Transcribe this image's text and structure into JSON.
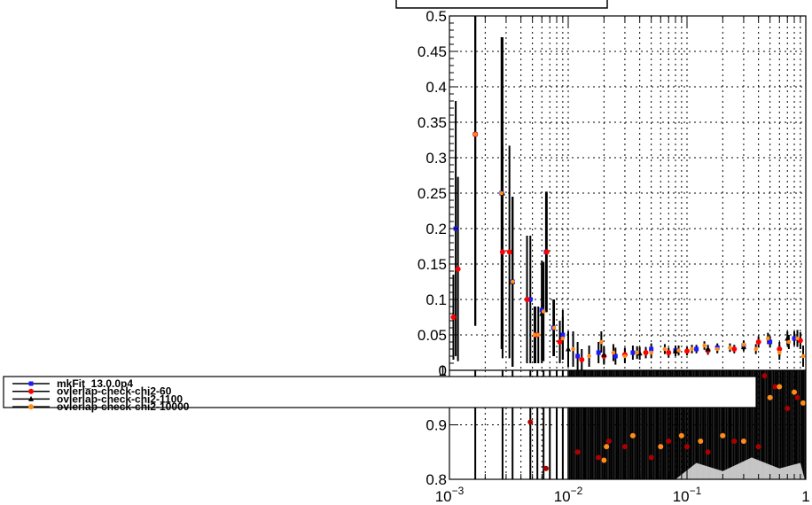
{
  "chart_data": [
    {
      "type": "scatter",
      "panel": "main",
      "xscale": "log",
      "xlim": [
        0.001,
        1
      ],
      "ylim": [
        0,
        0.5
      ],
      "grid": true,
      "yticks": [
        "0",
        "0.05",
        "0.1",
        "0.15",
        "0.2",
        "0.25",
        "0.3",
        "0.35",
        "0.4",
        "0.45",
        "0.5"
      ],
      "series": [
        {
          "name": "mkFit_13.0.0p4",
          "color": "#1a1aff",
          "marker": "square",
          "points": [
            {
              "x": 0.00113,
              "y": 0.2,
              "err": 0.18
            },
            {
              "x": 0.00165,
              "y": 0.333,
              "err": 0.27
            },
            {
              "x": 0.00275,
              "y": 0.25,
              "err": 0.22
            },
            {
              "x": 0.0034,
              "y": 0.125,
              "err": 0.12
            },
            {
              "x": 0.0048,
              "y": 0.1,
              "err": 0.09
            },
            {
              "x": 0.006,
              "y": 0.085,
              "err": 0.07
            },
            {
              "x": 0.0065,
              "y": 0.167,
              "err": 0.085
            },
            {
              "x": 0.0075,
              "y": 0.06,
              "err": 0.04
            },
            {
              "x": 0.009,
              "y": 0.05,
              "err": 0.035
            },
            {
              "x": 0.012,
              "y": 0.02,
              "err": 0.02
            },
            {
              "x": 0.018,
              "y": 0.025,
              "err": 0.015
            },
            {
              "x": 0.025,
              "y": 0.02,
              "err": 0.012
            },
            {
              "x": 0.035,
              "y": 0.025,
              "err": 0.01
            },
            {
              "x": 0.05,
              "y": 0.03,
              "err": 0.008
            },
            {
              "x": 0.08,
              "y": 0.028,
              "err": 0.007
            },
            {
              "x": 0.12,
              "y": 0.03,
              "err": 0.006
            },
            {
              "x": 0.18,
              "y": 0.032,
              "err": 0.006
            },
            {
              "x": 0.3,
              "y": 0.035,
              "err": 0.006
            },
            {
              "x": 0.5,
              "y": 0.04,
              "err": 0.008
            },
            {
              "x": 0.8,
              "y": 0.045,
              "err": 0.01
            }
          ]
        },
        {
          "name": "ovlerlap-check-chi2-60",
          "color": "#ff0000",
          "marker": "circle",
          "points": [
            {
              "x": 0.00108,
              "y": 0.075,
              "err": 0.06
            },
            {
              "x": 0.00118,
              "y": 0.143,
              "err": 0.13
            },
            {
              "x": 0.00165,
              "y": 0.333,
              "err": 0.27
            },
            {
              "x": 0.0028,
              "y": 0.167,
              "err": 0.15
            },
            {
              "x": 0.0032,
              "y": 0.167,
              "err": 0.15
            },
            {
              "x": 0.0045,
              "y": 0.1,
              "err": 0.09
            },
            {
              "x": 0.0053,
              "y": 0.05,
              "err": 0.04
            },
            {
              "x": 0.0066,
              "y": 0.167,
              "err": 0.085
            },
            {
              "x": 0.0085,
              "y": 0.04,
              "err": 0.03
            },
            {
              "x": 0.013,
              "y": 0.015,
              "err": 0.015
            },
            {
              "x": 0.02,
              "y": 0.02,
              "err": 0.012
            },
            {
              "x": 0.03,
              "y": 0.022,
              "err": 0.01
            },
            {
              "x": 0.045,
              "y": 0.025,
              "err": 0.008
            },
            {
              "x": 0.07,
              "y": 0.025,
              "err": 0.007
            },
            {
              "x": 0.1,
              "y": 0.027,
              "err": 0.006
            },
            {
              "x": 0.15,
              "y": 0.028,
              "err": 0.006
            },
            {
              "x": 0.25,
              "y": 0.03,
              "err": 0.006
            },
            {
              "x": 0.4,
              "y": 0.04,
              "err": 0.008
            },
            {
              "x": 0.6,
              "y": 0.03,
              "err": 0.01
            },
            {
              "x": 0.9,
              "y": 0.042,
              "err": 0.012
            }
          ]
        },
        {
          "name": "ovlerlap-check-chi2-1100",
          "color": "#000000",
          "marker": "triangle",
          "points": [
            {
              "x": 0.0028,
              "y": 0.25,
              "err": 0.22
            },
            {
              "x": 0.0034,
              "y": 0.125,
              "err": 0.12
            },
            {
              "x": 0.006,
              "y": 0.08,
              "err": 0.07
            },
            {
              "x": 0.01,
              "y": 0.03,
              "err": 0.025
            },
            {
              "x": 0.02,
              "y": 0.022,
              "err": 0.012
            },
            {
              "x": 0.04,
              "y": 0.024,
              "err": 0.009
            },
            {
              "x": 0.08,
              "y": 0.027,
              "err": 0.007
            },
            {
              "x": 0.15,
              "y": 0.03,
              "err": 0.006
            },
            {
              "x": 0.3,
              "y": 0.033,
              "err": 0.006
            },
            {
              "x": 0.7,
              "y": 0.045,
              "err": 0.01
            }
          ]
        },
        {
          "name": "ovlerlap-check-chi2-10000",
          "color": "#ff8c1a",
          "marker": "circle-small",
          "points": [
            {
              "x": 0.00165,
              "y": 0.333,
              "err": 0.27
            },
            {
              "x": 0.00275,
              "y": 0.25,
              "err": 0.22
            },
            {
              "x": 0.0034,
              "y": 0.125,
              "err": 0.12
            },
            {
              "x": 0.0052,
              "y": 0.05,
              "err": 0.04
            },
            {
              "x": 0.0056,
              "y": 0.05,
              "err": 0.04
            },
            {
              "x": 0.0062,
              "y": 0.083,
              "err": 0.07
            },
            {
              "x": 0.0076,
              "y": 0.06,
              "err": 0.04
            },
            {
              "x": 0.009,
              "y": 0.045,
              "err": 0.03
            },
            {
              "x": 0.011,
              "y": 0.03,
              "err": 0.025
            },
            {
              "x": 0.015,
              "y": 0.02,
              "err": 0.015
            },
            {
              "x": 0.019,
              "y": 0.04,
              "err": 0.015
            },
            {
              "x": 0.024,
              "y": 0.025,
              "err": 0.012
            },
            {
              "x": 0.03,
              "y": 0.02,
              "err": 0.01
            },
            {
              "x": 0.038,
              "y": 0.025,
              "err": 0.009
            },
            {
              "x": 0.05,
              "y": 0.025,
              "err": 0.008
            },
            {
              "x": 0.065,
              "y": 0.03,
              "err": 0.007
            },
            {
              "x": 0.085,
              "y": 0.028,
              "err": 0.007
            },
            {
              "x": 0.11,
              "y": 0.03,
              "err": 0.006
            },
            {
              "x": 0.14,
              "y": 0.035,
              "err": 0.006
            },
            {
              "x": 0.18,
              "y": 0.03,
              "err": 0.006
            },
            {
              "x": 0.23,
              "y": 0.032,
              "err": 0.006
            },
            {
              "x": 0.3,
              "y": 0.036,
              "err": 0.006
            },
            {
              "x": 0.38,
              "y": 0.03,
              "err": 0.007
            },
            {
              "x": 0.48,
              "y": 0.045,
              "err": 0.008
            },
            {
              "x": 0.6,
              "y": 0.025,
              "err": 0.01
            },
            {
              "x": 0.72,
              "y": 0.04,
              "err": 0.01
            },
            {
              "x": 0.85,
              "y": 0.045,
              "err": 0.012
            },
            {
              "x": 0.95,
              "y": 0.02,
              "err": 0.015
            }
          ]
        }
      ]
    },
    {
      "type": "scatter",
      "panel": "ratio",
      "xscale": "log",
      "xlim": [
        0.001,
        1
      ],
      "ylim": [
        0.8,
        1.0
      ],
      "grid": true,
      "yticks": [
        "0.8",
        "0.9",
        "1"
      ],
      "xticks": [
        {
          "x": 0.001,
          "base": "10",
          "exp": "−3"
        },
        {
          "x": 0.01,
          "base": "10",
          "exp": "−2"
        },
        {
          "x": 0.1,
          "base": "10",
          "exp": "−1"
        },
        {
          "x": 1,
          "base": "1",
          "exp": ""
        }
      ],
      "series": [
        {
          "name": "ovlerlap-check-chi2-60",
          "color": "#aa0000",
          "points": [
            {
              "x": 0.0048,
              "y": 0.905
            },
            {
              "x": 0.0065,
              "y": 0.82
            },
            {
              "x": 0.012,
              "y": 0.85
            },
            {
              "x": 0.018,
              "y": 0.84
            },
            {
              "x": 0.022,
              "y": 0.87
            },
            {
              "x": 0.03,
              "y": 0.86
            },
            {
              "x": 0.05,
              "y": 0.84
            },
            {
              "x": 0.07,
              "y": 0.87
            },
            {
              "x": 0.1,
              "y": 0.86
            },
            {
              "x": 0.15,
              "y": 0.85
            },
            {
              "x": 0.25,
              "y": 0.87
            },
            {
              "x": 0.4,
              "y": 0.86
            },
            {
              "x": 0.45,
              "y": 0.99
            },
            {
              "x": 0.55,
              "y": 0.97
            },
            {
              "x": 0.7,
              "y": 0.93
            },
            {
              "x": 0.85,
              "y": 0.95
            }
          ]
        },
        {
          "name": "ovlerlap-check-chi2-10000",
          "color": "#ff8c1a",
          "points": [
            {
              "x": 0.02,
              "y": 0.835
            },
            {
              "x": 0.021,
              "y": 0.86
            },
            {
              "x": 0.035,
              "y": 0.88
            },
            {
              "x": 0.06,
              "y": 0.86
            },
            {
              "x": 0.09,
              "y": 0.88
            },
            {
              "x": 0.13,
              "y": 0.87
            },
            {
              "x": 0.2,
              "y": 0.88
            },
            {
              "x": 0.3,
              "y": 0.87
            },
            {
              "x": 0.5,
              "y": 0.95
            },
            {
              "x": 0.6,
              "y": 0.97
            },
            {
              "x": 0.8,
              "y": 0.96
            },
            {
              "x": 0.95,
              "y": 0.94
            }
          ]
        }
      ]
    }
  ],
  "legend": {
    "entries": [
      {
        "label": "mkFit_13.0.0p4",
        "color": "#1a1aff",
        "marker": "square"
      },
      {
        "label": "ovlerlap-check-chi2-60",
        "color": "#ff0000",
        "marker": "circle"
      },
      {
        "label": "ovlerlap-check-chi2-1100",
        "color": "#000000",
        "marker": "triangle"
      },
      {
        "label": "ovlerlap-check-chi2-10000",
        "color": "#ff8c1a",
        "marker": "circle"
      }
    ]
  }
}
